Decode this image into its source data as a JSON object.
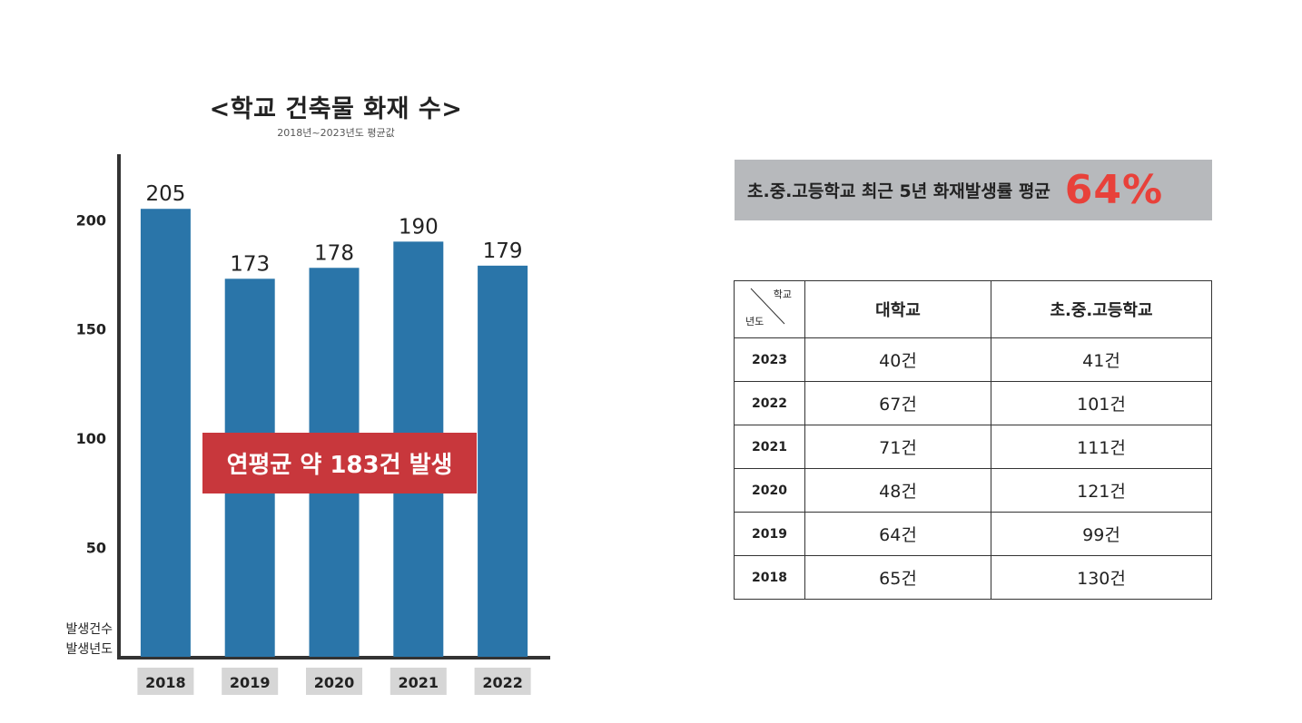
{
  "chart_data": {
    "type": "bar",
    "title": "<학교 건축물 화재 수>",
    "subtitle": "2018년~2023년도 평균값",
    "categories": [
      "2018",
      "2019",
      "2020",
      "2021",
      "2022"
    ],
    "values": [
      205,
      173,
      178,
      190,
      179
    ],
    "ylabel": "발생건수",
    "xlabel": "발생년도",
    "yticks": [
      50,
      100,
      150,
      200
    ],
    "ylim": [
      0,
      230
    ],
    "grid": false,
    "bar_color": "#2a75a9",
    "annotation": "연평균 약 183건 발생"
  },
  "summary": {
    "text": "초.중.고등학교 최근 5년 화재발생률 평균",
    "value": "64%",
    "value_color": "#e8413a"
  },
  "table": {
    "corner_top": "학교",
    "corner_bottom": "년도",
    "headers": [
      "대학교",
      "초.중.고등학교"
    ],
    "rows": [
      {
        "year": "2023",
        "university": "40건",
        "school": "41건"
      },
      {
        "year": "2022",
        "university": "67건",
        "school": "101건"
      },
      {
        "year": "2021",
        "university": "71건",
        "school": "111건"
      },
      {
        "year": "2020",
        "university": "48건",
        "school": "121건"
      },
      {
        "year": "2019",
        "university": "64건",
        "school": "99건"
      },
      {
        "year": "2018",
        "university": "65건",
        "school": "130건"
      }
    ]
  }
}
